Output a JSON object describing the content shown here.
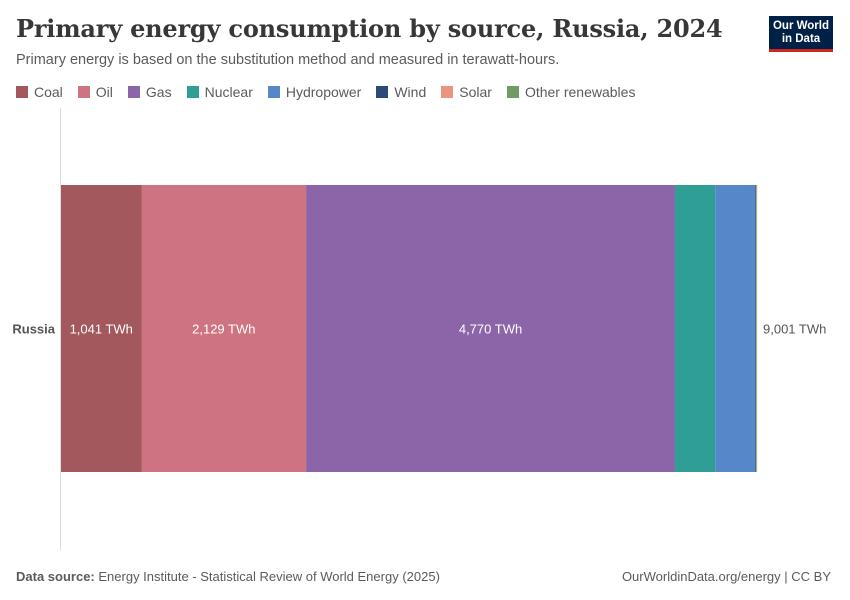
{
  "header": {
    "title": "Primary energy consumption by source, Russia, 2024",
    "subtitle": "Primary energy is based on the substitution method and measured in terawatt-hours."
  },
  "logo": {
    "line1": "Our World",
    "line2": "in Data"
  },
  "colors": {
    "Coal": "#a2585d",
    "Oil": "#ce7381",
    "Gas": "#8b65a8",
    "Nuclear": "#2f9e94",
    "Hydropower": "#5687c8",
    "Wind": "#2c4a75",
    "Solar": "#e99481",
    "Other renewables": "#719a64"
  },
  "chart_data": {
    "type": "bar",
    "orientation": "horizontal",
    "stacked": true,
    "title": "Primary energy consumption by source, Russia, 2024",
    "unit": "TWh",
    "categories": [
      "Russia"
    ],
    "series": [
      {
        "name": "Coal",
        "values": [
          1041
        ],
        "label": "1,041 TWh"
      },
      {
        "name": "Oil",
        "values": [
          2129
        ],
        "label": "2,129 TWh"
      },
      {
        "name": "Gas",
        "values": [
          4770
        ],
        "label": "4,770 TWh"
      },
      {
        "name": "Nuclear",
        "values": [
          520
        ],
        "label": ""
      },
      {
        "name": "Hydropower",
        "values": [
          520
        ],
        "label": ""
      },
      {
        "name": "Wind",
        "values": [
          10
        ],
        "label": ""
      },
      {
        "name": "Solar",
        "values": [
          6
        ],
        "label": ""
      },
      {
        "name": "Other renewables",
        "values": [
          5
        ],
        "label": ""
      }
    ],
    "total": 9001,
    "total_label": "9,001 TWh",
    "legend_position": "top-left",
    "xlim": [
      0,
      9001
    ]
  },
  "footer": {
    "source_label": "Data source:",
    "source_text": "Energy Institute - Statistical Review of World Energy (2025)",
    "right_text": "OurWorldinData.org/energy | CC BY"
  }
}
